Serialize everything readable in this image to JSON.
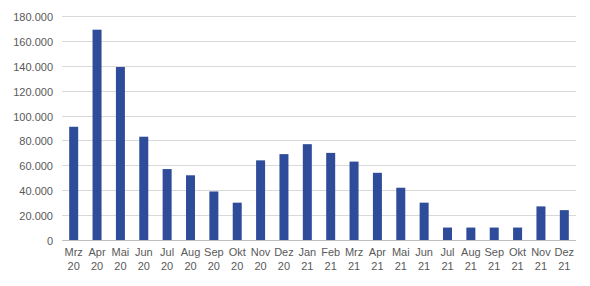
{
  "chart_data": {
    "type": "bar",
    "categories": [
      "Mrz 20",
      "Apr 20",
      "Mai 20",
      "Jun 20",
      "Jul 20",
      "Aug 20",
      "Sep 20",
      "Okt 20",
      "Nov 20",
      "Dez 20",
      "Jan 21",
      "Feb 21",
      "Mrz 21",
      "Apr 21",
      "Mai 21",
      "Jun 21",
      "Jul 21",
      "Aug 21",
      "Sep 21",
      "Okt 21",
      "Nov 21",
      "Dez 21"
    ],
    "values": [
      91000,
      169000,
      139000,
      83000,
      57000,
      52000,
      39000,
      30000,
      64000,
      69000,
      77000,
      70000,
      63000,
      54000,
      42000,
      30000,
      10000,
      10000,
      10000,
      10000,
      27000,
      24000
    ],
    "color": "#2e4c9a",
    "ylim": [
      0,
      180000
    ],
    "yticks": [
      0,
      {
        "value": 20000,
        "label": "20.000"
      },
      {
        "value": 40000,
        "label": "40.000"
      },
      {
        "value": 60000,
        "label": "60.000"
      },
      {
        "value": 80000,
        "label": "80.000"
      },
      {
        "value": 100000,
        "label": "100.000"
      },
      {
        "value": 120000,
        "label": "120.000"
      },
      {
        "value": 140000,
        "label": "140.000"
      },
      {
        "value": 160000,
        "label": "160.000"
      },
      {
        "value": 180000,
        "label": "180.000"
      }
    ],
    "grid": true
  }
}
